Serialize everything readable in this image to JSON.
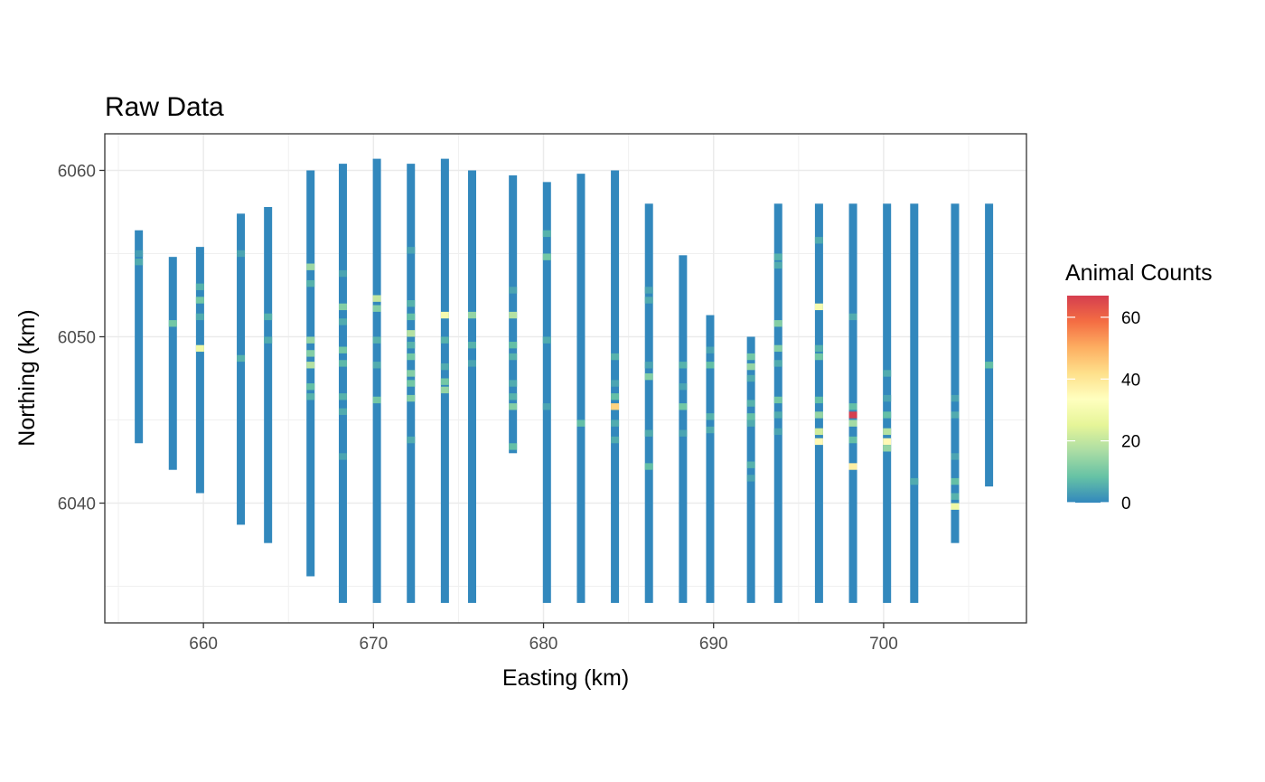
{
  "chart_data": {
    "type": "heatmap",
    "title": "Raw Data",
    "xlabel": "Easting (km)",
    "ylabel": "Northing (km)",
    "xlim": [
      654.2,
      708.4
    ],
    "ylim": [
      6032.8,
      6062.2
    ],
    "x_ticks": [
      660,
      670,
      680,
      690,
      700
    ],
    "y_ticks": [
      6040,
      6050,
      6060
    ],
    "grid": true,
    "legend": {
      "title": "Animal Counts",
      "position": "right",
      "range": [
        0,
        67
      ],
      "ticks": [
        0,
        20,
        40,
        60
      ],
      "colors": [
        "#3288bd",
        "#66c2a5",
        "#abdda4",
        "#e6f598",
        "#ffffbf",
        "#fee08b",
        "#fdae61",
        "#f46d43",
        "#d53e4f"
      ]
    },
    "transects": [
      {
        "x": 656.2,
        "y_min": 6043.6,
        "y_max": 6056.4,
        "hot": [
          [
            6055,
            3
          ],
          [
            6054.5,
            5
          ]
        ]
      },
      {
        "x": 658.2,
        "y_min": 6042,
        "y_max": 6054.8,
        "hot": [
          [
            6050.8,
            10
          ]
        ]
      },
      {
        "x": 659.8,
        "y_min": 6040.6,
        "y_max": 6055.4,
        "hot": [
          [
            6053,
            6
          ],
          [
            6052.2,
            10
          ],
          [
            6051.2,
            5
          ],
          [
            6049.3,
            28
          ]
        ]
      },
      {
        "x": 662.2,
        "y_min": 6038.7,
        "y_max": 6057.4,
        "hot": [
          [
            6055,
            4
          ],
          [
            6048.7,
            6
          ]
        ]
      },
      {
        "x": 663.8,
        "y_min": 6037.6,
        "y_max": 6057.8,
        "hot": [
          [
            6051.2,
            6
          ],
          [
            6049.8,
            5
          ]
        ]
      },
      {
        "x": 666.3,
        "y_min": 6035.6,
        "y_max": 6060,
        "hot": [
          [
            6054.2,
            15
          ],
          [
            6053.2,
            6
          ],
          [
            6049.8,
            14
          ],
          [
            6049,
            12
          ],
          [
            6048.3,
            18
          ],
          [
            6047,
            8
          ],
          [
            6046.4,
            6
          ]
        ]
      },
      {
        "x": 668.2,
        "y_min": 6034,
        "y_max": 6060.4,
        "hot": [
          [
            6053.8,
            4
          ],
          [
            6051.8,
            12
          ],
          [
            6050.9,
            5
          ],
          [
            6049.2,
            10
          ],
          [
            6048.4,
            7
          ],
          [
            6046.4,
            6
          ],
          [
            6045.5,
            5
          ],
          [
            6042.8,
            4
          ]
        ]
      },
      {
        "x": 670.2,
        "y_min": 6034,
        "y_max": 6060.7,
        "hot": [
          [
            6052.3,
            20
          ],
          [
            6051.7,
            12
          ],
          [
            6049.8,
            6
          ],
          [
            6048.3,
            5
          ],
          [
            6046.2,
            10
          ]
        ]
      },
      {
        "x": 672.2,
        "y_min": 6034,
        "y_max": 6060.4,
        "hot": [
          [
            6055.2,
            4
          ],
          [
            6052,
            6
          ],
          [
            6051.2,
            8
          ],
          [
            6050.2,
            18
          ],
          [
            6049.5,
            6
          ],
          [
            6048.8,
            10
          ],
          [
            6047.8,
            12
          ],
          [
            6047.2,
            10
          ],
          [
            6046.3,
            12
          ],
          [
            6043.8,
            5
          ]
        ]
      },
      {
        "x": 674.2,
        "y_min": 6034,
        "y_max": 6060.7,
        "hot": [
          [
            6051.3,
            30
          ],
          [
            6049.8,
            6
          ],
          [
            6048.2,
            5
          ],
          [
            6047.3,
            10
          ],
          [
            6046.8,
            14
          ]
        ]
      },
      {
        "x": 675.8,
        "y_min": 6034,
        "y_max": 6060,
        "hot": [
          [
            6051.3,
            14
          ],
          [
            6049.5,
            6
          ],
          [
            6048.4,
            4
          ]
        ]
      },
      {
        "x": 678.2,
        "y_min": 6043,
        "y_max": 6059.7,
        "hot": [
          [
            6052.8,
            4
          ],
          [
            6051.3,
            18
          ],
          [
            6049.5,
            8
          ],
          [
            6048.8,
            6
          ],
          [
            6047.2,
            5
          ],
          [
            6046.4,
            6
          ],
          [
            6045.8,
            12
          ],
          [
            6043.4,
            8
          ]
        ]
      },
      {
        "x": 680.2,
        "y_min": 6034,
        "y_max": 6059.3,
        "hot": [
          [
            6056.2,
            6
          ],
          [
            6054.8,
            10
          ],
          [
            6049.8,
            5
          ],
          [
            6045.8,
            4
          ]
        ]
      },
      {
        "x": 682.2,
        "y_min": 6034,
        "y_max": 6059.8,
        "hot": [
          [
            6044.8,
            8
          ]
        ]
      },
      {
        "x": 684.2,
        "y_min": 6034,
        "y_max": 6060,
        "hot": [
          [
            6048.8,
            6
          ],
          [
            6047.2,
            4
          ],
          [
            6046.4,
            8
          ],
          [
            6045.8,
            44
          ],
          [
            6044.8,
            5
          ],
          [
            6043.8,
            5
          ]
        ]
      },
      {
        "x": 686.2,
        "y_min": 6034,
        "y_max": 6058,
        "hot": [
          [
            6052.8,
            4
          ],
          [
            6052.2,
            5
          ],
          [
            6048.3,
            4
          ],
          [
            6047.6,
            12
          ],
          [
            6044.2,
            5
          ],
          [
            6042.2,
            8
          ]
        ]
      },
      {
        "x": 688.2,
        "y_min": 6034,
        "y_max": 6054.9,
        "hot": [
          [
            6048.3,
            6
          ],
          [
            6047,
            4
          ],
          [
            6045.8,
            10
          ],
          [
            6044.2,
            4
          ]
        ]
      },
      {
        "x": 689.8,
        "y_min": 6034,
        "y_max": 6051.3,
        "hot": [
          [
            6049.2,
            4
          ],
          [
            6048.3,
            8
          ],
          [
            6045.2,
            6
          ],
          [
            6044.4,
            5
          ]
        ]
      },
      {
        "x": 692.2,
        "y_min": 6034,
        "y_max": 6050,
        "hot": [
          [
            6048.8,
            10
          ],
          [
            6048.2,
            14
          ],
          [
            6047.5,
            5
          ],
          [
            6046,
            6
          ],
          [
            6045.2,
            8
          ],
          [
            6044.8,
            5
          ],
          [
            6042.3,
            6
          ],
          [
            6041.5,
            4
          ]
        ]
      },
      {
        "x": 693.8,
        "y_min": 6034,
        "y_max": 6058,
        "hot": [
          [
            6054.8,
            6
          ],
          [
            6054.3,
            5
          ],
          [
            6050.8,
            12
          ],
          [
            6049.3,
            12
          ],
          [
            6048.4,
            5
          ],
          [
            6046.2,
            10
          ],
          [
            6045.3,
            5
          ],
          [
            6044.3,
            4
          ]
        ]
      },
      {
        "x": 696.2,
        "y_min": 6034,
        "y_max": 6058,
        "hot": [
          [
            6055.8,
            5
          ],
          [
            6051.8,
            30
          ],
          [
            6049.3,
            6
          ],
          [
            6048.8,
            10
          ],
          [
            6046.2,
            8
          ],
          [
            6045.3,
            14
          ],
          [
            6044.3,
            22
          ],
          [
            6043.7,
            35
          ]
        ]
      },
      {
        "x": 698.2,
        "y_min": 6034,
        "y_max": 6058,
        "hot": [
          [
            6051.2,
            5
          ],
          [
            6045.8,
            8
          ],
          [
            6045.3,
            67
          ],
          [
            6044.8,
            16
          ],
          [
            6043.8,
            8
          ],
          [
            6042.2,
            38
          ]
        ]
      },
      {
        "x": 700.2,
        "y_min": 6034,
        "y_max": 6058,
        "hot": [
          [
            6047.8,
            5
          ],
          [
            6046.3,
            4
          ],
          [
            6045.3,
            8
          ],
          [
            6044.3,
            18
          ],
          [
            6043.7,
            35
          ],
          [
            6043.3,
            14
          ]
        ]
      },
      {
        "x": 701.8,
        "y_min": 6034,
        "y_max": 6058,
        "hot": [
          [
            6041.3,
            5
          ]
        ]
      },
      {
        "x": 704.2,
        "y_min": 6037.6,
        "y_max": 6058,
        "hot": [
          [
            6046.3,
            4
          ],
          [
            6045.3,
            5
          ],
          [
            6042.8,
            4
          ],
          [
            6041.3,
            8
          ],
          [
            6040.4,
            6
          ],
          [
            6039.8,
            28
          ]
        ]
      },
      {
        "x": 706.2,
        "y_min": 6041,
        "y_max": 6058,
        "hot": [
          [
            6048.3,
            8
          ]
        ]
      }
    ]
  }
}
